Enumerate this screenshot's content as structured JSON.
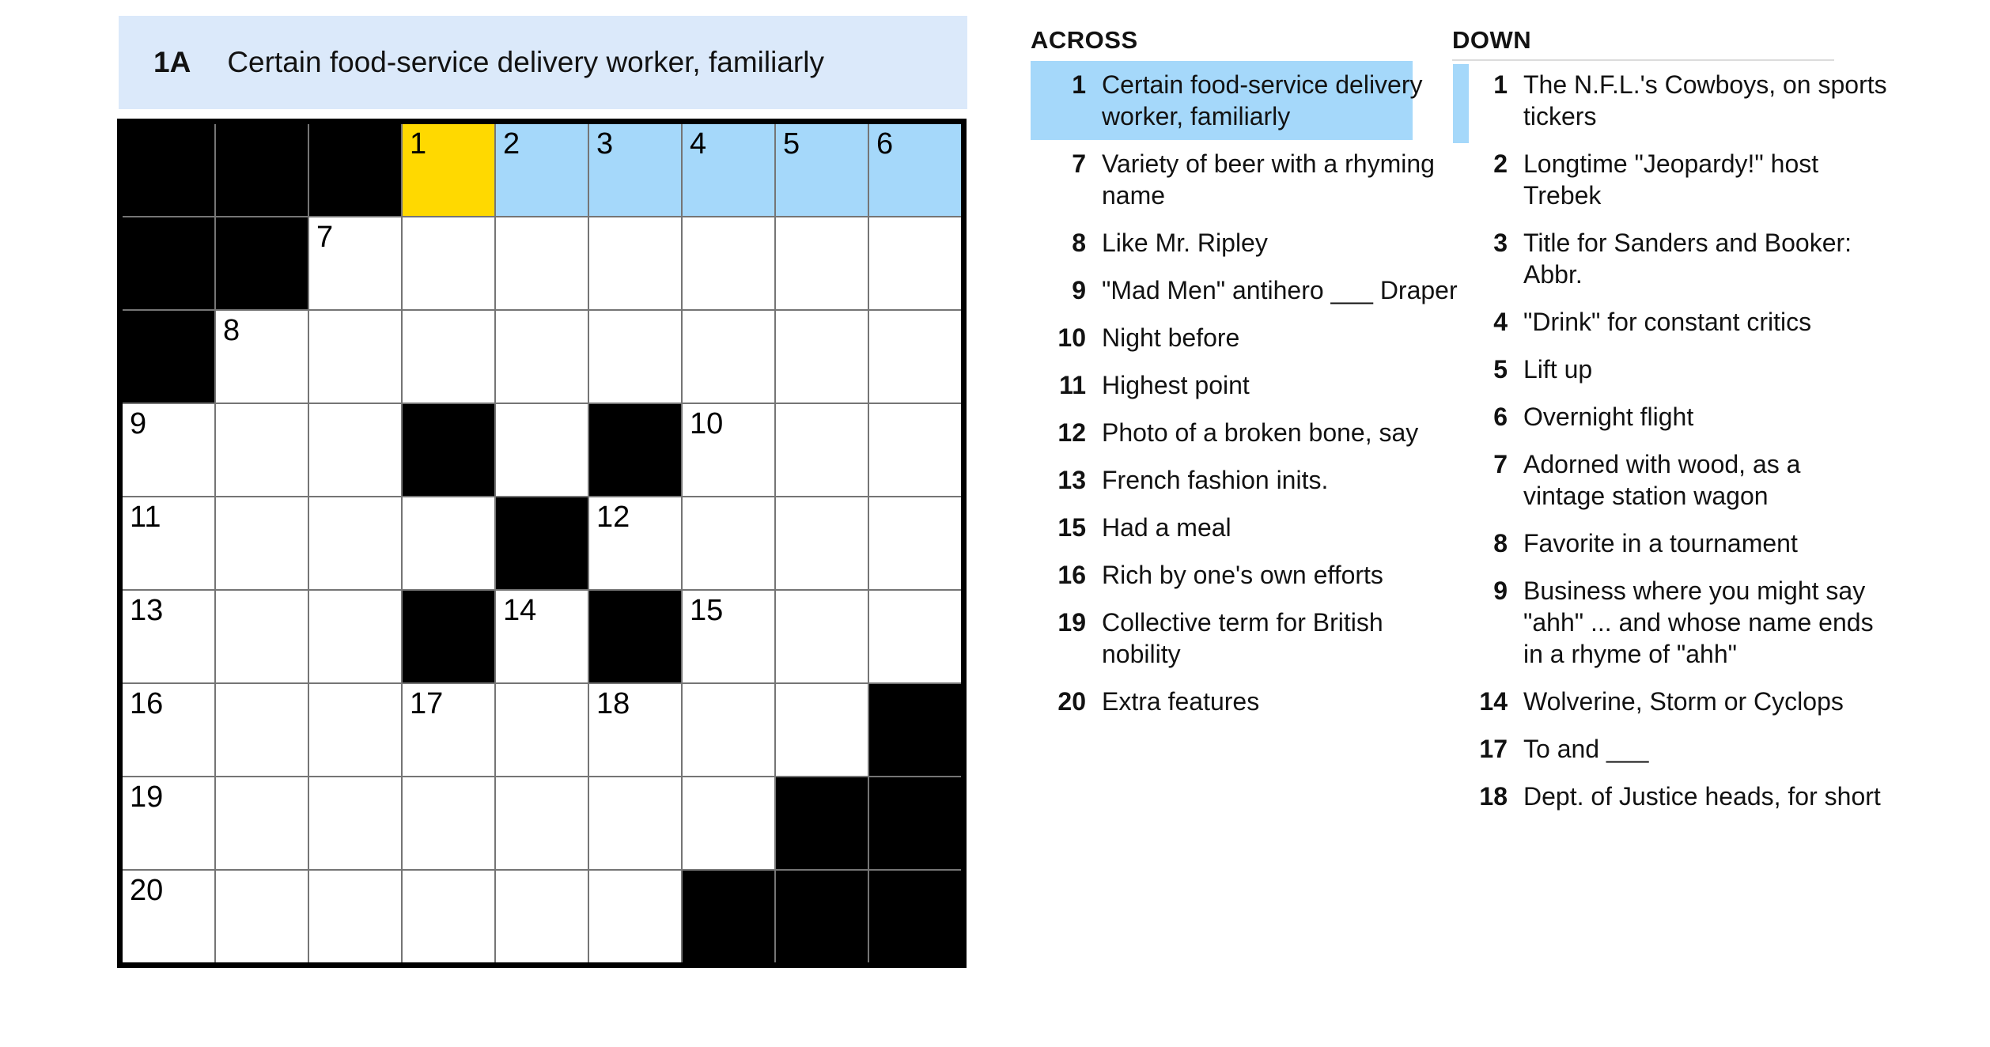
{
  "colors": {
    "selected_cell": "#ffd900",
    "word_highlight": "#a5d8fa",
    "banner_background": "#dbe9fa",
    "grid_line": "#757575",
    "black_cell": "#000000",
    "header_divider": "#dcdcdc",
    "text": "#121212"
  },
  "banner": {
    "number_label": "1A",
    "clue": "Certain food-service delivery worker, familiarly"
  },
  "grid": {
    "rows": 9,
    "cols": 9,
    "selected_cell": "row1-col4",
    "highlighted_word": "1-Across",
    "cells": [
      {
        "t": "b"
      },
      {
        "t": "b"
      },
      {
        "t": "b"
      },
      {
        "t": "w",
        "n": "1",
        "s": "sel"
      },
      {
        "t": "w",
        "n": "2",
        "s": "hl"
      },
      {
        "t": "w",
        "n": "3",
        "s": "hl"
      },
      {
        "t": "w",
        "n": "4",
        "s": "hl"
      },
      {
        "t": "w",
        "n": "5",
        "s": "hl"
      },
      {
        "t": "w",
        "n": "6",
        "s": "hl"
      },
      {
        "t": "b"
      },
      {
        "t": "b"
      },
      {
        "t": "w",
        "n": "7"
      },
      {
        "t": "w"
      },
      {
        "t": "w"
      },
      {
        "t": "w"
      },
      {
        "t": "w"
      },
      {
        "t": "w"
      },
      {
        "t": "w"
      },
      {
        "t": "b"
      },
      {
        "t": "w",
        "n": "8"
      },
      {
        "t": "w"
      },
      {
        "t": "w"
      },
      {
        "t": "w"
      },
      {
        "t": "w"
      },
      {
        "t": "w"
      },
      {
        "t": "w"
      },
      {
        "t": "w"
      },
      {
        "t": "w",
        "n": "9"
      },
      {
        "t": "w"
      },
      {
        "t": "w"
      },
      {
        "t": "b"
      },
      {
        "t": "w"
      },
      {
        "t": "b"
      },
      {
        "t": "w",
        "n": "10"
      },
      {
        "t": "w"
      },
      {
        "t": "w"
      },
      {
        "t": "w",
        "n": "11"
      },
      {
        "t": "w"
      },
      {
        "t": "w"
      },
      {
        "t": "w"
      },
      {
        "t": "b"
      },
      {
        "t": "w",
        "n": "12"
      },
      {
        "t": "w"
      },
      {
        "t": "w"
      },
      {
        "t": "w"
      },
      {
        "t": "w",
        "n": "13"
      },
      {
        "t": "w"
      },
      {
        "t": "w"
      },
      {
        "t": "b"
      },
      {
        "t": "w",
        "n": "14"
      },
      {
        "t": "b"
      },
      {
        "t": "w",
        "n": "15"
      },
      {
        "t": "w"
      },
      {
        "t": "w"
      },
      {
        "t": "w",
        "n": "16"
      },
      {
        "t": "w"
      },
      {
        "t": "w"
      },
      {
        "t": "w",
        "n": "17"
      },
      {
        "t": "w"
      },
      {
        "t": "w",
        "n": "18"
      },
      {
        "t": "w"
      },
      {
        "t": "w"
      },
      {
        "t": "b"
      },
      {
        "t": "w",
        "n": "19"
      },
      {
        "t": "w"
      },
      {
        "t": "w"
      },
      {
        "t": "w"
      },
      {
        "t": "w"
      },
      {
        "t": "w"
      },
      {
        "t": "w"
      },
      {
        "t": "b"
      },
      {
        "t": "b"
      },
      {
        "t": "w",
        "n": "20"
      },
      {
        "t": "w"
      },
      {
        "t": "w"
      },
      {
        "t": "w"
      },
      {
        "t": "w"
      },
      {
        "t": "w"
      },
      {
        "t": "b"
      },
      {
        "t": "b"
      },
      {
        "t": "b"
      }
    ]
  },
  "across": {
    "header": "ACROSS",
    "clues": [
      {
        "number": "1",
        "text": "Certain food-service delivery\nworker, familiarly",
        "highlighted": true
      },
      {
        "number": "7",
        "text": "Variety of beer with a rhyming\nname"
      },
      {
        "number": "8",
        "text": "Like Mr. Ripley"
      },
      {
        "number": "9",
        "text": "\"Mad Men\" antihero ___ Draper"
      },
      {
        "number": "10",
        "text": "Night before"
      },
      {
        "number": "11",
        "text": "Highest point"
      },
      {
        "number": "12",
        "text": "Photo of a broken bone, say"
      },
      {
        "number": "13",
        "text": "French fashion inits."
      },
      {
        "number": "15",
        "text": "Had a meal"
      },
      {
        "number": "16",
        "text": "Rich by one's own efforts"
      },
      {
        "number": "19",
        "text": "Collective term for British\nnobility"
      },
      {
        "number": "20",
        "text": "Extra features"
      }
    ]
  },
  "down": {
    "header": "DOWN",
    "clues": [
      {
        "number": "1",
        "text": "The N.F.L.'s Cowboys, on sports\ntickers",
        "crossing": true
      },
      {
        "number": "2",
        "text": "Longtime \"Jeopardy!\" host\nTrebek"
      },
      {
        "number": "3",
        "text": "Title for Sanders and Booker:\nAbbr."
      },
      {
        "number": "4",
        "text": "\"Drink\" for constant critics"
      },
      {
        "number": "5",
        "text": "Lift up"
      },
      {
        "number": "6",
        "text": "Overnight flight"
      },
      {
        "number": "7",
        "text": "Adorned with wood, as a\nvintage station wagon"
      },
      {
        "number": "8",
        "text": "Favorite in a tournament"
      },
      {
        "number": "9",
        "text": "Business where you might say\n\"ahh\" ... and whose name ends\nin a rhyme of \"ahh\""
      },
      {
        "number": "14",
        "text": "Wolverine, Storm or Cyclops"
      },
      {
        "number": "17",
        "text": "To and ___"
      },
      {
        "number": "18",
        "text": "Dept. of Justice heads, for short"
      }
    ]
  }
}
